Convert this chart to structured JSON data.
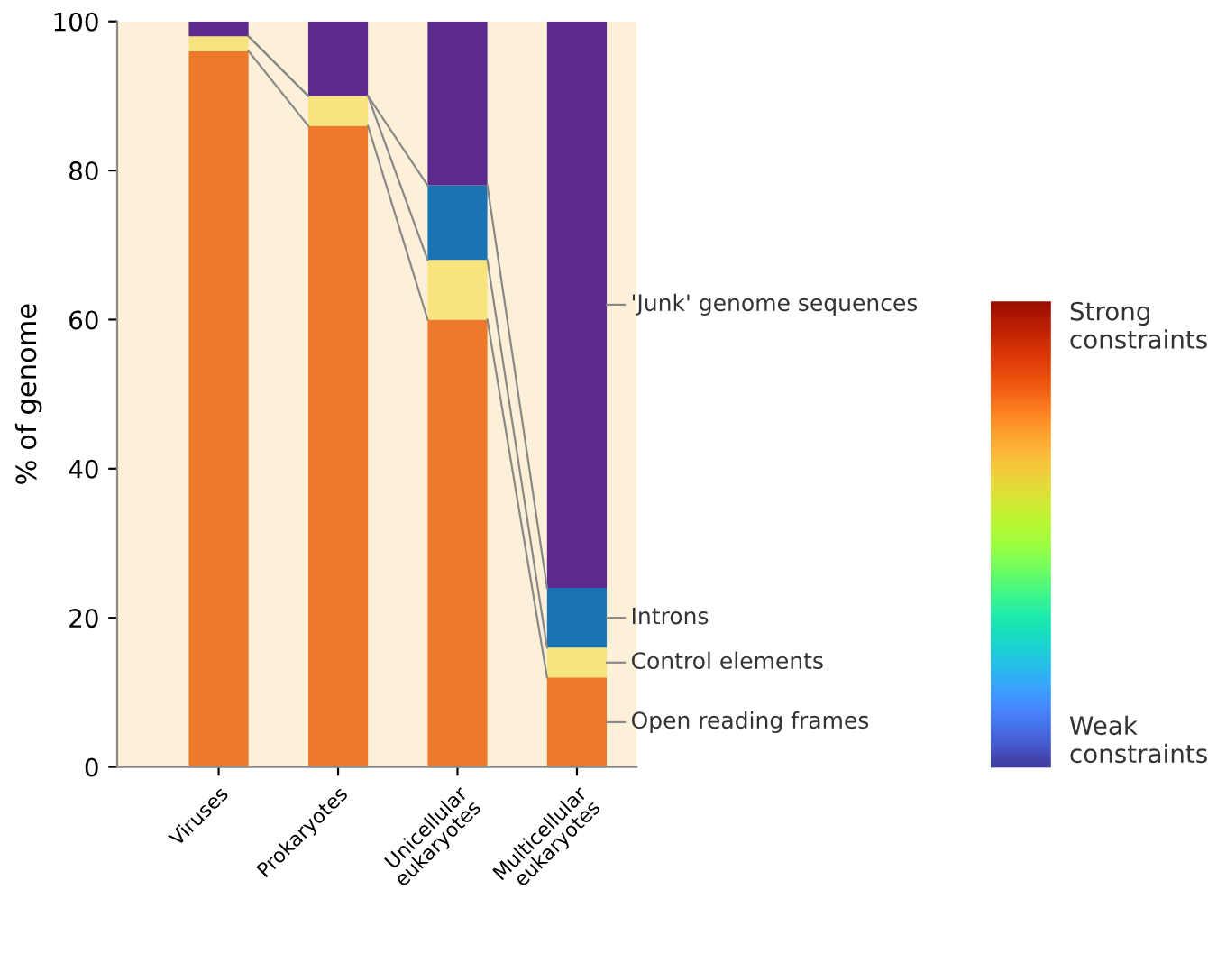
{
  "chart_data": {
    "type": "bar",
    "stacked": true,
    "ylabel": "% of genome",
    "categories": [
      "Viruses",
      "Prokaryotes",
      "Unicellular eukaryotes",
      "Multicellular eukaryotes"
    ],
    "series": [
      {
        "name": "Open reading frames",
        "color": "#ec7a2a",
        "values": [
          96,
          86,
          60,
          12
        ]
      },
      {
        "name": "Control elements",
        "color": "#f7e47e",
        "values": [
          2,
          4,
          8,
          4
        ]
      },
      {
        "name": "Introns",
        "color": "#1a73b5",
        "values": [
          0,
          0,
          10,
          8
        ]
      },
      {
        "name": "'Junk' genome sequences",
        "color": "#5b2a8c",
        "values": [
          2,
          10,
          22,
          76
        ]
      }
    ],
    "ylim": [
      0,
      100
    ],
    "yticks": [
      0,
      20,
      40,
      60,
      80,
      100
    ],
    "grid": false,
    "legend": false,
    "annotations": [
      "Strong constraints",
      "Weak constraints"
    ]
  }
}
